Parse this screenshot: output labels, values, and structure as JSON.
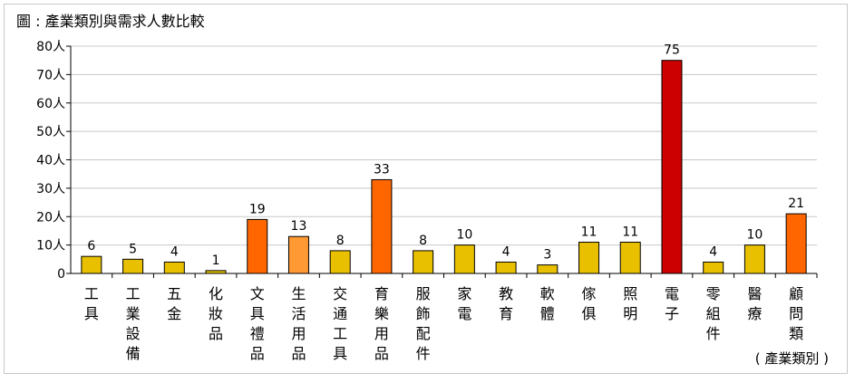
{
  "title": "圖 : 產業類別與需求人數比較",
  "chart_data": {
    "type": "bar",
    "title": "圖 : 產業類別與需求人數比較",
    "xlabel": "( 產業類別 )",
    "ylabel": "",
    "ylim": [
      0,
      80
    ],
    "y_ticks": [
      "0",
      "10人",
      "20人",
      "30人",
      "40人",
      "50人",
      "60人",
      "70人",
      "80人"
    ],
    "grid": true,
    "categories": [
      "工具",
      "工業設備",
      "五金",
      "化妝品",
      "文具禮品",
      "生活用品",
      "交通工具",
      "育樂用品",
      "服飾配件",
      "家電",
      "教育",
      "軟體",
      "傢俱",
      "照明",
      "電子",
      "零組件",
      "醫療",
      "顧問類"
    ],
    "values": [
      6,
      5,
      4,
      1,
      19,
      13,
      8,
      33,
      8,
      10,
      4,
      3,
      11,
      11,
      75,
      4,
      10,
      21
    ],
    "data_labels": [
      "6",
      "5",
      "4",
      "1",
      "19",
      "13",
      "8",
      "33",
      "8",
      "10",
      "4",
      "3",
      "11",
      "11",
      "75",
      "4",
      "10",
      "21"
    ],
    "bar_colors": [
      "#e8c000",
      "#e8c000",
      "#e8c000",
      "#e8c000",
      "#ff6600",
      "#ff9933",
      "#e8c000",
      "#ff6600",
      "#e8c000",
      "#e8c000",
      "#e8c000",
      "#e8c000",
      "#e8c000",
      "#e8c000",
      "#cc0000",
      "#e8c000",
      "#e8c000",
      "#ff6600"
    ]
  }
}
